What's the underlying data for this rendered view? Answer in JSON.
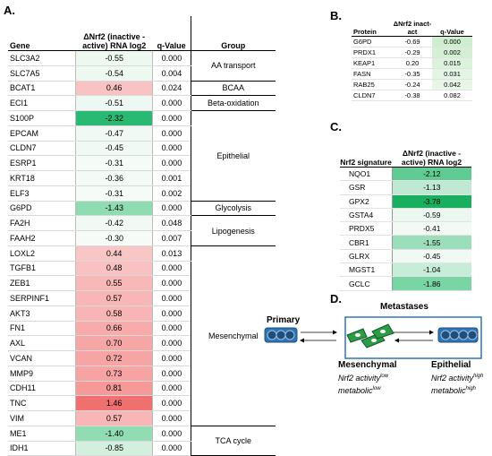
{
  "panel_a": {
    "label": "A.",
    "headers": {
      "gene": "Gene",
      "value": "ΔNrf2 (inactive - active) RNA log2",
      "q": "q-Value",
      "group": "Group"
    },
    "rows": [
      {
        "gene": "SLC3A2",
        "value": "-0.55",
        "q": "0.000",
        "bg": "#edf8f1"
      },
      {
        "gene": "SLC7A5",
        "value": "-0.54",
        "q": "0.004",
        "bg": "#edf8f1"
      },
      {
        "gene": "BCAT1",
        "value": "0.46",
        "q": "0.024",
        "bg": "#f9c3c3"
      },
      {
        "gene": "ECI1",
        "value": "-0.51",
        "q": "0.000",
        "bg": "#eef8f2"
      },
      {
        "gene": "S100P",
        "value": "-2.32",
        "q": "0.000",
        "bg": "#2ab973"
      },
      {
        "gene": "EPCAM",
        "value": "-0.47",
        "q": "0.000",
        "bg": "#f0f9f3"
      },
      {
        "gene": "CLDN7",
        "value": "-0.45",
        "q": "0.000",
        "bg": "#f0f9f4"
      },
      {
        "gene": "ESRP1",
        "value": "-0.31",
        "q": "0.000",
        "bg": "#f5fbf7"
      },
      {
        "gene": "KRT18",
        "value": "-0.36",
        "q": "0.001",
        "bg": "#f4faf6"
      },
      {
        "gene": "ELF3",
        "value": "-0.31",
        "q": "0.002",
        "bg": "#f5fbf7"
      },
      {
        "gene": "G6PD",
        "value": "-1.43",
        "q": "0.000",
        "bg": "#8fdbb2"
      },
      {
        "gene": "FA2H",
        "value": "-0.42",
        "q": "0.048",
        "bg": "#f1f9f4"
      },
      {
        "gene": "FAAH2",
        "value": "-0.30",
        "q": "0.007",
        "bg": "#f6fbf8"
      },
      {
        "gene": "LOXL2",
        "value": "0.44",
        "q": "0.013",
        "bg": "#f9c6c6"
      },
      {
        "gene": "TGFB1",
        "value": "0.48",
        "q": "0.000",
        "bg": "#f9c1c1"
      },
      {
        "gene": "ZEB1",
        "value": "0.55",
        "q": "0.000",
        "bg": "#f8b8b8"
      },
      {
        "gene": "SERPINF1",
        "value": "0.57",
        "q": "0.000",
        "bg": "#f8b6b6"
      },
      {
        "gene": "AKT3",
        "value": "0.58",
        "q": "0.000",
        "bg": "#f8b5b5"
      },
      {
        "gene": "FN1",
        "value": "0.66",
        "q": "0.000",
        "bg": "#f7abab"
      },
      {
        "gene": "AXL",
        "value": "0.70",
        "q": "0.000",
        "bg": "#f7a6a6"
      },
      {
        "gene": "VCAN",
        "value": "0.72",
        "q": "0.000",
        "bg": "#f7a4a4"
      },
      {
        "gene": "MMP9",
        "value": "0.73",
        "q": "0.000",
        "bg": "#f7a3a3"
      },
      {
        "gene": "CDH11",
        "value": "0.81",
        "q": "0.000",
        "bg": "#f69999"
      },
      {
        "gene": "TNC",
        "value": "1.46",
        "q": "0.000",
        "bg": "#f07070"
      },
      {
        "gene": "VIM",
        "value": "0.57",
        "q": "0.000",
        "bg": "#f8b6b6"
      },
      {
        "gene": "ME1",
        "value": "-1.40",
        "q": "0.000",
        "bg": "#91dcb3"
      },
      {
        "gene": "IDH1",
        "value": "-0.85",
        "q": "0.000",
        "bg": "#d3f0df"
      }
    ],
    "groups": [
      {
        "label": "AA transport",
        "rows": 2
      },
      {
        "label": "BCAA",
        "rows": 1
      },
      {
        "label": "Beta-oxidation",
        "rows": 1
      },
      {
        "label": "Epithelial",
        "rows": 6
      },
      {
        "label": "Glycolysis",
        "rows": 1
      },
      {
        "label": "Lipogenesis",
        "rows": 2
      },
      {
        "label": "Mesenchymal",
        "rows": 12
      },
      {
        "label": "TCA cycle",
        "rows": 2
      }
    ]
  },
  "panel_b": {
    "label": "B.",
    "headers": {
      "protein": "Protein",
      "value": "ΔNrf2 inact-act",
      "q": "q-Value"
    },
    "rows": [
      {
        "protein": "G6PD",
        "value": "-0.69",
        "q": "0.000",
        "qbg": "#cfeecf"
      },
      {
        "protein": "PRDX1",
        "value": "-0.29",
        "q": "0.002",
        "qbg": "#d4efd4"
      },
      {
        "protein": "KEAP1",
        "value": "0.20",
        "q": "0.015",
        "qbg": "#dcf2dc"
      },
      {
        "protein": "FASN",
        "value": "-0.35",
        "q": "0.031",
        "qbg": "#e3f5e3"
      },
      {
        "protein": "RAB25",
        "value": "-0.24",
        "q": "0.042",
        "qbg": "#e8f6e8"
      },
      {
        "protein": "CLDN7",
        "value": "-0.38",
        "q": "0.082",
        "qbg": "#ffffff"
      }
    ]
  },
  "panel_c": {
    "label": "C.",
    "headers": {
      "sig": "Nrf2 signature",
      "value": "ΔNrf2 (inactive - active) RNA log2"
    },
    "rows": [
      {
        "gene": "NQO1",
        "value": "-2.12",
        "bg": "#5fcc93"
      },
      {
        "gene": "GSR",
        "value": "-1.13",
        "bg": "#bfe9d2"
      },
      {
        "gene": "GPX2",
        "value": "-3.78",
        "bg": "#1aae5f"
      },
      {
        "gene": "GSTA4",
        "value": "-0.59",
        "bg": "#eaf7ef"
      },
      {
        "gene": "PRDX5",
        "value": "-0.41",
        "bg": "#f3faf6"
      },
      {
        "gene": "CBR1",
        "value": "-1.55",
        "bg": "#9cdeba"
      },
      {
        "gene": "GLRX",
        "value": "-0.45",
        "bg": "#f1f9f4"
      },
      {
        "gene": "MGST1",
        "value": "-1.04",
        "bg": "#c7ecd8"
      },
      {
        "gene": "GCLC",
        "value": "-1.86",
        "bg": "#7ad5a4"
      }
    ]
  },
  "panel_d": {
    "label": "D.",
    "metastases": "Metastases",
    "primary": "Primary",
    "mesenchymal": "Mesenchymal",
    "mes_line1": "Nrf2 activity",
    "mes_sup1": "low",
    "mes_line2": "metabolic",
    "mes_sup2": "low",
    "epithelial": "Epithelial",
    "epi_line1": "Nrf2 activity",
    "epi_sup1": "high",
    "epi_line2": "metabolic",
    "epi_sup2": "high"
  }
}
